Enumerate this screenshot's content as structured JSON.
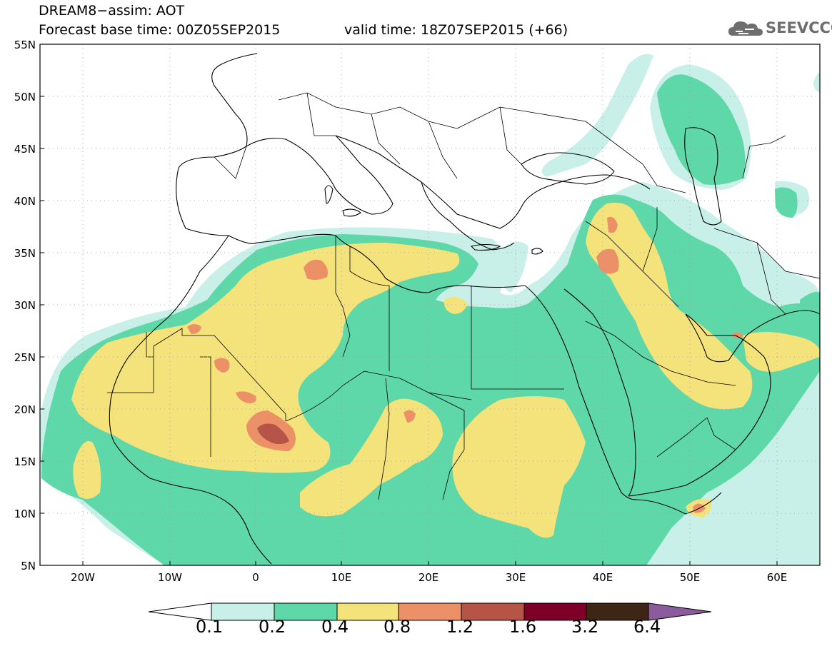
{
  "header": {
    "title_line1": "DREAM8−assim: AOT",
    "title_line2": "Forecast base time: 00Z05SEP2015",
    "valid_time": "valid time: 18Z07SEP2015 (+66)",
    "logo_text": "SEEVCCC"
  },
  "axes": {
    "lat_labels": [
      "55N",
      "50N",
      "45N",
      "40N",
      "35N",
      "30N",
      "25N",
      "20N",
      "15N",
      "10N",
      "5N"
    ],
    "lon_labels": [
      "20W",
      "10W",
      "0",
      "10E",
      "20E",
      "30E",
      "40E",
      "50E",
      "60E"
    ]
  },
  "colorbar": {
    "labels": [
      "0.1",
      "0.2",
      "0.4",
      "0.8",
      "1.2",
      "1.6",
      "3.2",
      "6.4"
    ],
    "colors": [
      "#ffffff",
      "#c8f0e8",
      "#5ed8a8",
      "#f4e27a",
      "#ec9068",
      "#b65448",
      "#7e0028",
      "#3e2616",
      "#8a5c9c"
    ]
  },
  "colors": {
    "level1": "#c8f0e8",
    "level2": "#5ed8a8",
    "level3": "#f4e27a",
    "level4": "#ec9068",
    "level5": "#b65448",
    "border": "#000000"
  }
}
